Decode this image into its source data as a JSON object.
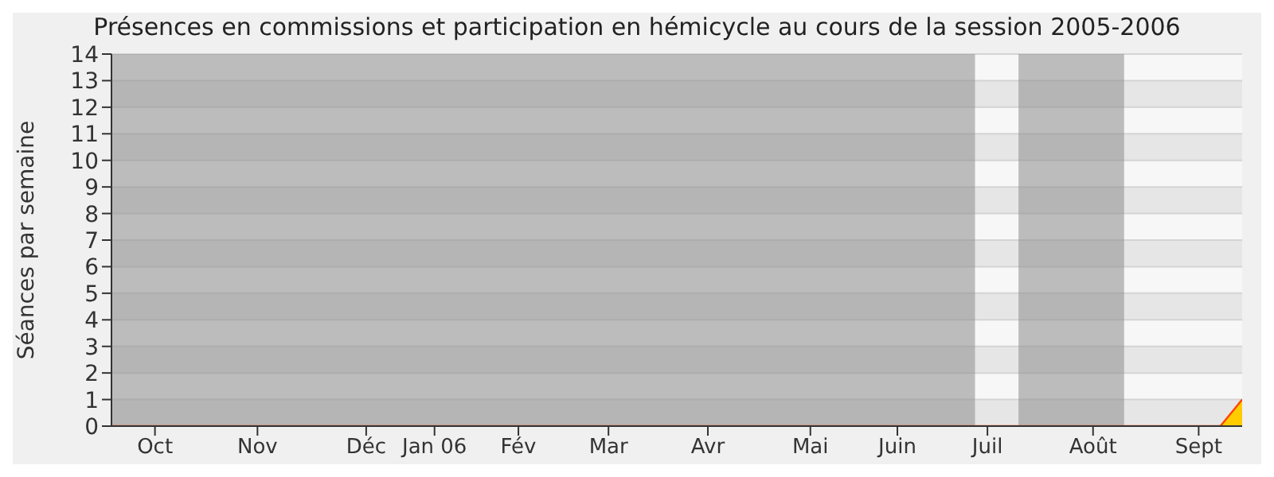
{
  "chart_data": {
    "type": "area",
    "title": "Présences en commissions et participation en hémicycle au cours de la session 2005-2006",
    "ylabel": "Séances par semaine",
    "x": [
      "2005-09-26",
      "2005-10-03",
      "2005-10-10",
      "2005-10-17",
      "2005-10-24",
      "2005-10-31",
      "2005-11-07",
      "2005-11-14",
      "2005-11-21",
      "2005-11-28",
      "2005-12-05",
      "2005-12-12",
      "2005-12-19",
      "2005-12-26",
      "2006-01-02",
      "2006-01-09",
      "2006-01-16",
      "2006-01-23",
      "2006-01-30",
      "2006-02-06",
      "2006-02-13",
      "2006-02-20",
      "2006-02-27",
      "2006-03-06",
      "2006-03-13",
      "2006-03-20",
      "2006-03-27",
      "2006-04-03",
      "2006-04-10",
      "2006-04-17",
      "2006-04-24",
      "2006-05-01",
      "2006-05-08",
      "2006-05-15",
      "2006-05-22",
      "2006-05-29",
      "2006-06-05",
      "2006-06-12",
      "2006-06-19",
      "2006-06-26",
      "2006-07-03",
      "2006-07-10",
      "2006-07-17",
      "2006-07-24",
      "2006-07-31",
      "2006-08-07",
      "2006-08-14",
      "2006-08-21",
      "2006-08-28",
      "2006-09-04",
      "2006-09-11",
      "2006-09-18",
      "2006-09-25"
    ],
    "series": [
      {
        "color": "#ffcc00",
        "values": [
          0,
          0,
          0,
          0,
          0,
          0,
          0,
          0,
          0,
          0,
          0,
          0,
          0,
          0,
          0,
          0,
          0,
          0,
          0,
          0,
          0,
          0,
          0,
          0,
          0,
          0,
          0,
          0,
          0,
          0,
          0,
          0,
          0,
          0,
          0,
          0,
          0,
          0,
          0,
          0,
          0,
          0,
          0,
          0,
          0,
          0,
          0,
          0,
          0,
          0,
          0,
          0,
          1
        ]
      }
    ],
    "xlim": [
      "2005-09-26",
      "2006-09-25"
    ],
    "xticks": [
      {
        "value": "2005-10-10",
        "label": "Oct"
      },
      {
        "value": "2005-11-12",
        "label": "Nov"
      },
      {
        "value": "2005-12-17",
        "label": "Déc"
      },
      {
        "value": "2006-01-08",
        "label": "Jan 06"
      },
      {
        "value": "2006-02-04",
        "label": "Fév"
      },
      {
        "value": "2006-03-05",
        "label": "Mar"
      },
      {
        "value": "2006-04-06",
        "label": "Avr"
      },
      {
        "value": "2006-05-09",
        "label": "Mai"
      },
      {
        "value": "2006-06-06",
        "label": "Juin"
      },
      {
        "value": "2006-07-05",
        "label": "Juil"
      },
      {
        "value": "2006-08-08",
        "label": "Août"
      },
      {
        "value": "2006-09-11",
        "label": "Sept"
      }
    ],
    "ylim": [
      0,
      14
    ],
    "yticks": [
      0,
      1,
      2,
      3,
      4,
      5,
      6,
      7,
      8,
      9,
      10,
      11,
      12,
      13,
      14
    ],
    "bands": [
      {
        "axis": "x",
        "from": "2005-09-26",
        "to": "2006-07-01",
        "color": "#8c8c8c"
      },
      {
        "axis": "x",
        "from": "2006-07-15",
        "to": "2006-08-18",
        "color": "#8c8c8c"
      }
    ],
    "grid": "y"
  }
}
